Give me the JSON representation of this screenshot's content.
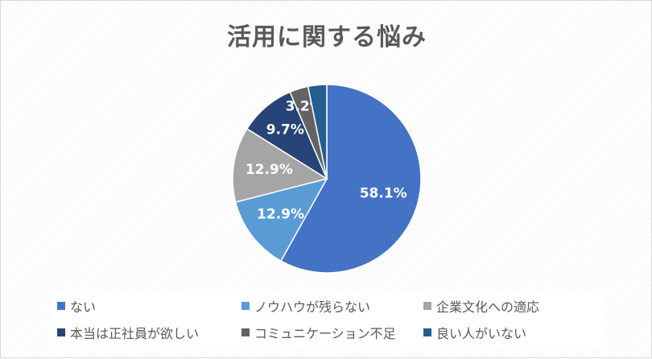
{
  "chart_data": {
    "type": "pie",
    "title": "活用に関する悩み",
    "categories": [
      "ない",
      "ノウハウが残らない",
      "企業文化への適応",
      "本当は正社員が欲しい",
      "コミュニケーション不足",
      "良い人がいない"
    ],
    "values": [
      58.1,
      12.9,
      12.9,
      9.7,
      3.2,
      3.2
    ],
    "data_labels": [
      "58.1%",
      "12.9%",
      "12.9%",
      "9.7%",
      "3.2%",
      ""
    ],
    "colors": [
      "#4472c4",
      "#5b9bd5",
      "#a5a5a5",
      "#264478",
      "#636363",
      "#255e91"
    ],
    "legend_position": "bottom"
  }
}
